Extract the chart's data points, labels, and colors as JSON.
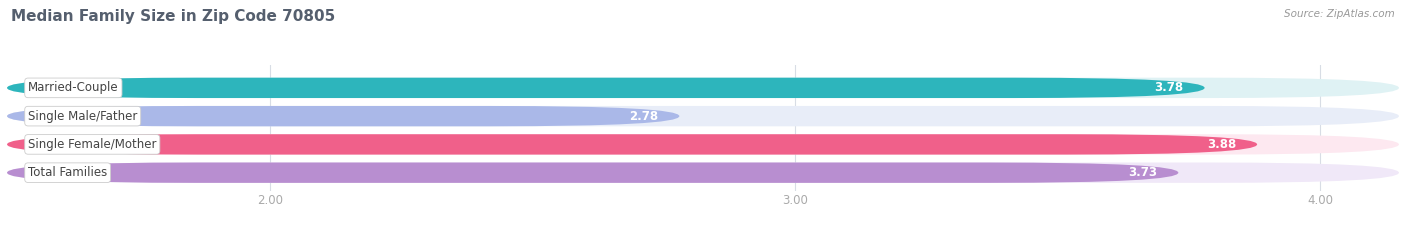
{
  "title": "Median Family Size in Zip Code 70805",
  "source": "Source: ZipAtlas.com",
  "categories": [
    "Married-Couple",
    "Single Male/Father",
    "Single Female/Mother",
    "Total Families"
  ],
  "values": [
    3.78,
    2.78,
    3.88,
    3.73
  ],
  "bar_colors": [
    "#2db5bc",
    "#aab8e8",
    "#f0608a",
    "#b88ed0"
  ],
  "bar_bg_colors": [
    "#dff2f4",
    "#e8edf8",
    "#fde8f0",
    "#f0e8f8"
  ],
  "x_min": 1.5,
  "x_max": 4.15,
  "x_ticks": [
    2.0,
    3.0,
    4.0
  ],
  "x_tick_labels": [
    "2.00",
    "3.00",
    "4.00"
  ],
  "bar_height": 0.72,
  "title_fontsize": 11,
  "source_fontsize": 7.5,
  "label_fontsize": 8.5,
  "value_fontsize": 8.5,
  "tick_fontsize": 8.5,
  "title_color": "#555f6e",
  "source_color": "#999999",
  "tick_color": "#aaaaaa",
  "value_text_color": "#ffffff",
  "category_text_color": "#444444",
  "grid_color": "#d8dde5",
  "background_color": "#ffffff"
}
